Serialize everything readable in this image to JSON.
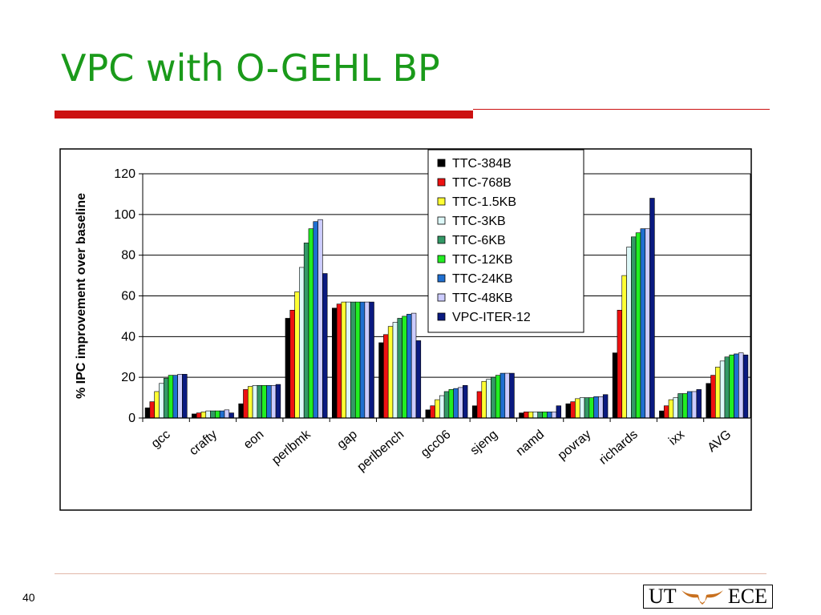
{
  "slide": {
    "title": "VPC with O-GEHL BP",
    "number": "40",
    "logo": {
      "left": "UT",
      "right": "ECE"
    }
  },
  "chart_data": {
    "type": "bar",
    "title": "",
    "xlabel": "",
    "ylabel": "% IPC improvement over baseline",
    "ylim": [
      0,
      120
    ],
    "yticks": [
      0,
      20,
      40,
      60,
      80,
      100,
      120
    ],
    "grid": true,
    "legend_position": "top-right",
    "categories": [
      "gcc",
      "crafty",
      "eon",
      "perlbmk",
      "gap",
      "perlbench",
      "gcc06",
      "sjeng",
      "namd",
      "povray",
      "richards",
      "ixx",
      "AVG"
    ],
    "series": [
      {
        "name": "TTC-384B",
        "color": "#000000",
        "values": [
          5,
          2,
          7,
          49,
          54,
          37,
          4,
          6,
          2.5,
          7,
          32,
          3.5,
          17
        ]
      },
      {
        "name": "TTC-768B",
        "color": "#ee1111",
        "values": [
          8,
          2.5,
          14,
          53,
          56,
          41,
          6,
          13,
          3,
          8,
          53,
          6,
          21
        ]
      },
      {
        "name": "TTC-1.5KB",
        "color": "#ffff33",
        "values": [
          13,
          3,
          15.5,
          62,
          57,
          45,
          9,
          18,
          3,
          9.5,
          70,
          9,
          25
        ]
      },
      {
        "name": "TTC-3KB",
        "color": "#ddf8f8",
        "values": [
          17,
          3.5,
          16,
          74,
          57,
          47,
          11,
          19,
          3,
          10,
          84,
          10,
          28
        ]
      },
      {
        "name": "TTC-6KB",
        "color": "#339966",
        "values": [
          19.5,
          3.5,
          16,
          86,
          57,
          49,
          13,
          20,
          3,
          10,
          89,
          12,
          30
        ]
      },
      {
        "name": "TTC-12KB",
        "color": "#22ee22",
        "values": [
          21,
          3.5,
          16,
          93,
          57,
          50,
          14,
          21,
          3,
          10,
          91,
          12,
          31
        ]
      },
      {
        "name": "TTC-24KB",
        "color": "#1f6fd0",
        "values": [
          21,
          3.5,
          16,
          96.5,
          57,
          51,
          14.5,
          22,
          3,
          10.5,
          93,
          13,
          31.5
        ]
      },
      {
        "name": "TTC-48KB",
        "color": "#ccccff",
        "values": [
          21.5,
          4,
          16,
          97.5,
          57,
          51.5,
          15,
          22,
          3,
          10.5,
          93,
          13,
          32
        ]
      },
      {
        "name": "VPC-ITER-12",
        "color": "#0a1a80",
        "values": [
          21.5,
          2.5,
          16.5,
          71,
          57,
          38,
          16,
          22,
          6,
          11.5,
          108,
          14,
          31
        ]
      }
    ]
  }
}
